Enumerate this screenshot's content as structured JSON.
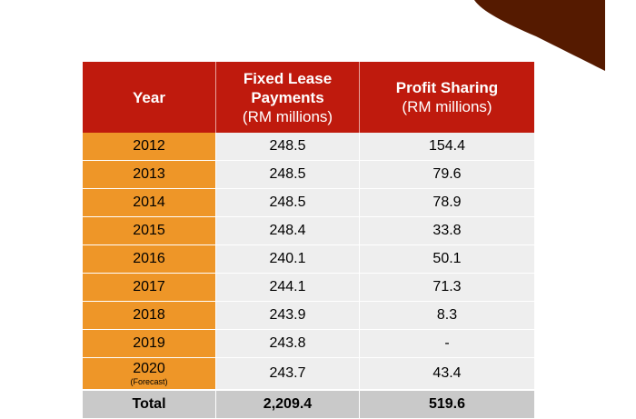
{
  "table": {
    "headers": [
      {
        "title": "Year",
        "unit": ""
      },
      {
        "title": "Fixed Lease Payments",
        "unit": "(RM millions)"
      },
      {
        "title": "Profit Sharing",
        "unit": "(RM millions)"
      }
    ],
    "rows": [
      {
        "year": "2012",
        "note": "",
        "fixed_lease": "248.5",
        "profit_sharing": "154.4"
      },
      {
        "year": "2013",
        "note": "",
        "fixed_lease": "248.5",
        "profit_sharing": "79.6"
      },
      {
        "year": "2014",
        "note": "",
        "fixed_lease": "248.5",
        "profit_sharing": "78.9"
      },
      {
        "year": "2015",
        "note": "",
        "fixed_lease": "248.4",
        "profit_sharing": "33.8"
      },
      {
        "year": "2016",
        "note": "",
        "fixed_lease": "240.1",
        "profit_sharing": "50.1"
      },
      {
        "year": "2017",
        "note": "",
        "fixed_lease": "244.1",
        "profit_sharing": "71.3"
      },
      {
        "year": "2018",
        "note": "",
        "fixed_lease": "243.9",
        "profit_sharing": "8.3"
      },
      {
        "year": "2019",
        "note": "",
        "fixed_lease": "243.8",
        "profit_sharing": "-"
      },
      {
        "year": "2020",
        "note": "(Forecast)",
        "fixed_lease": "243.7",
        "profit_sharing": "43.4"
      }
    ],
    "total": {
      "label": "Total",
      "fixed_lease": "2,209.4",
      "profit_sharing": "519.6"
    }
  },
  "colors": {
    "header_bg": "#bf1a0d",
    "year_cell_bg": "#ee9628",
    "value_cell_bg": "#eeeeee",
    "total_row_bg": "#c9c9c9",
    "corner_shape": "#551a00"
  }
}
